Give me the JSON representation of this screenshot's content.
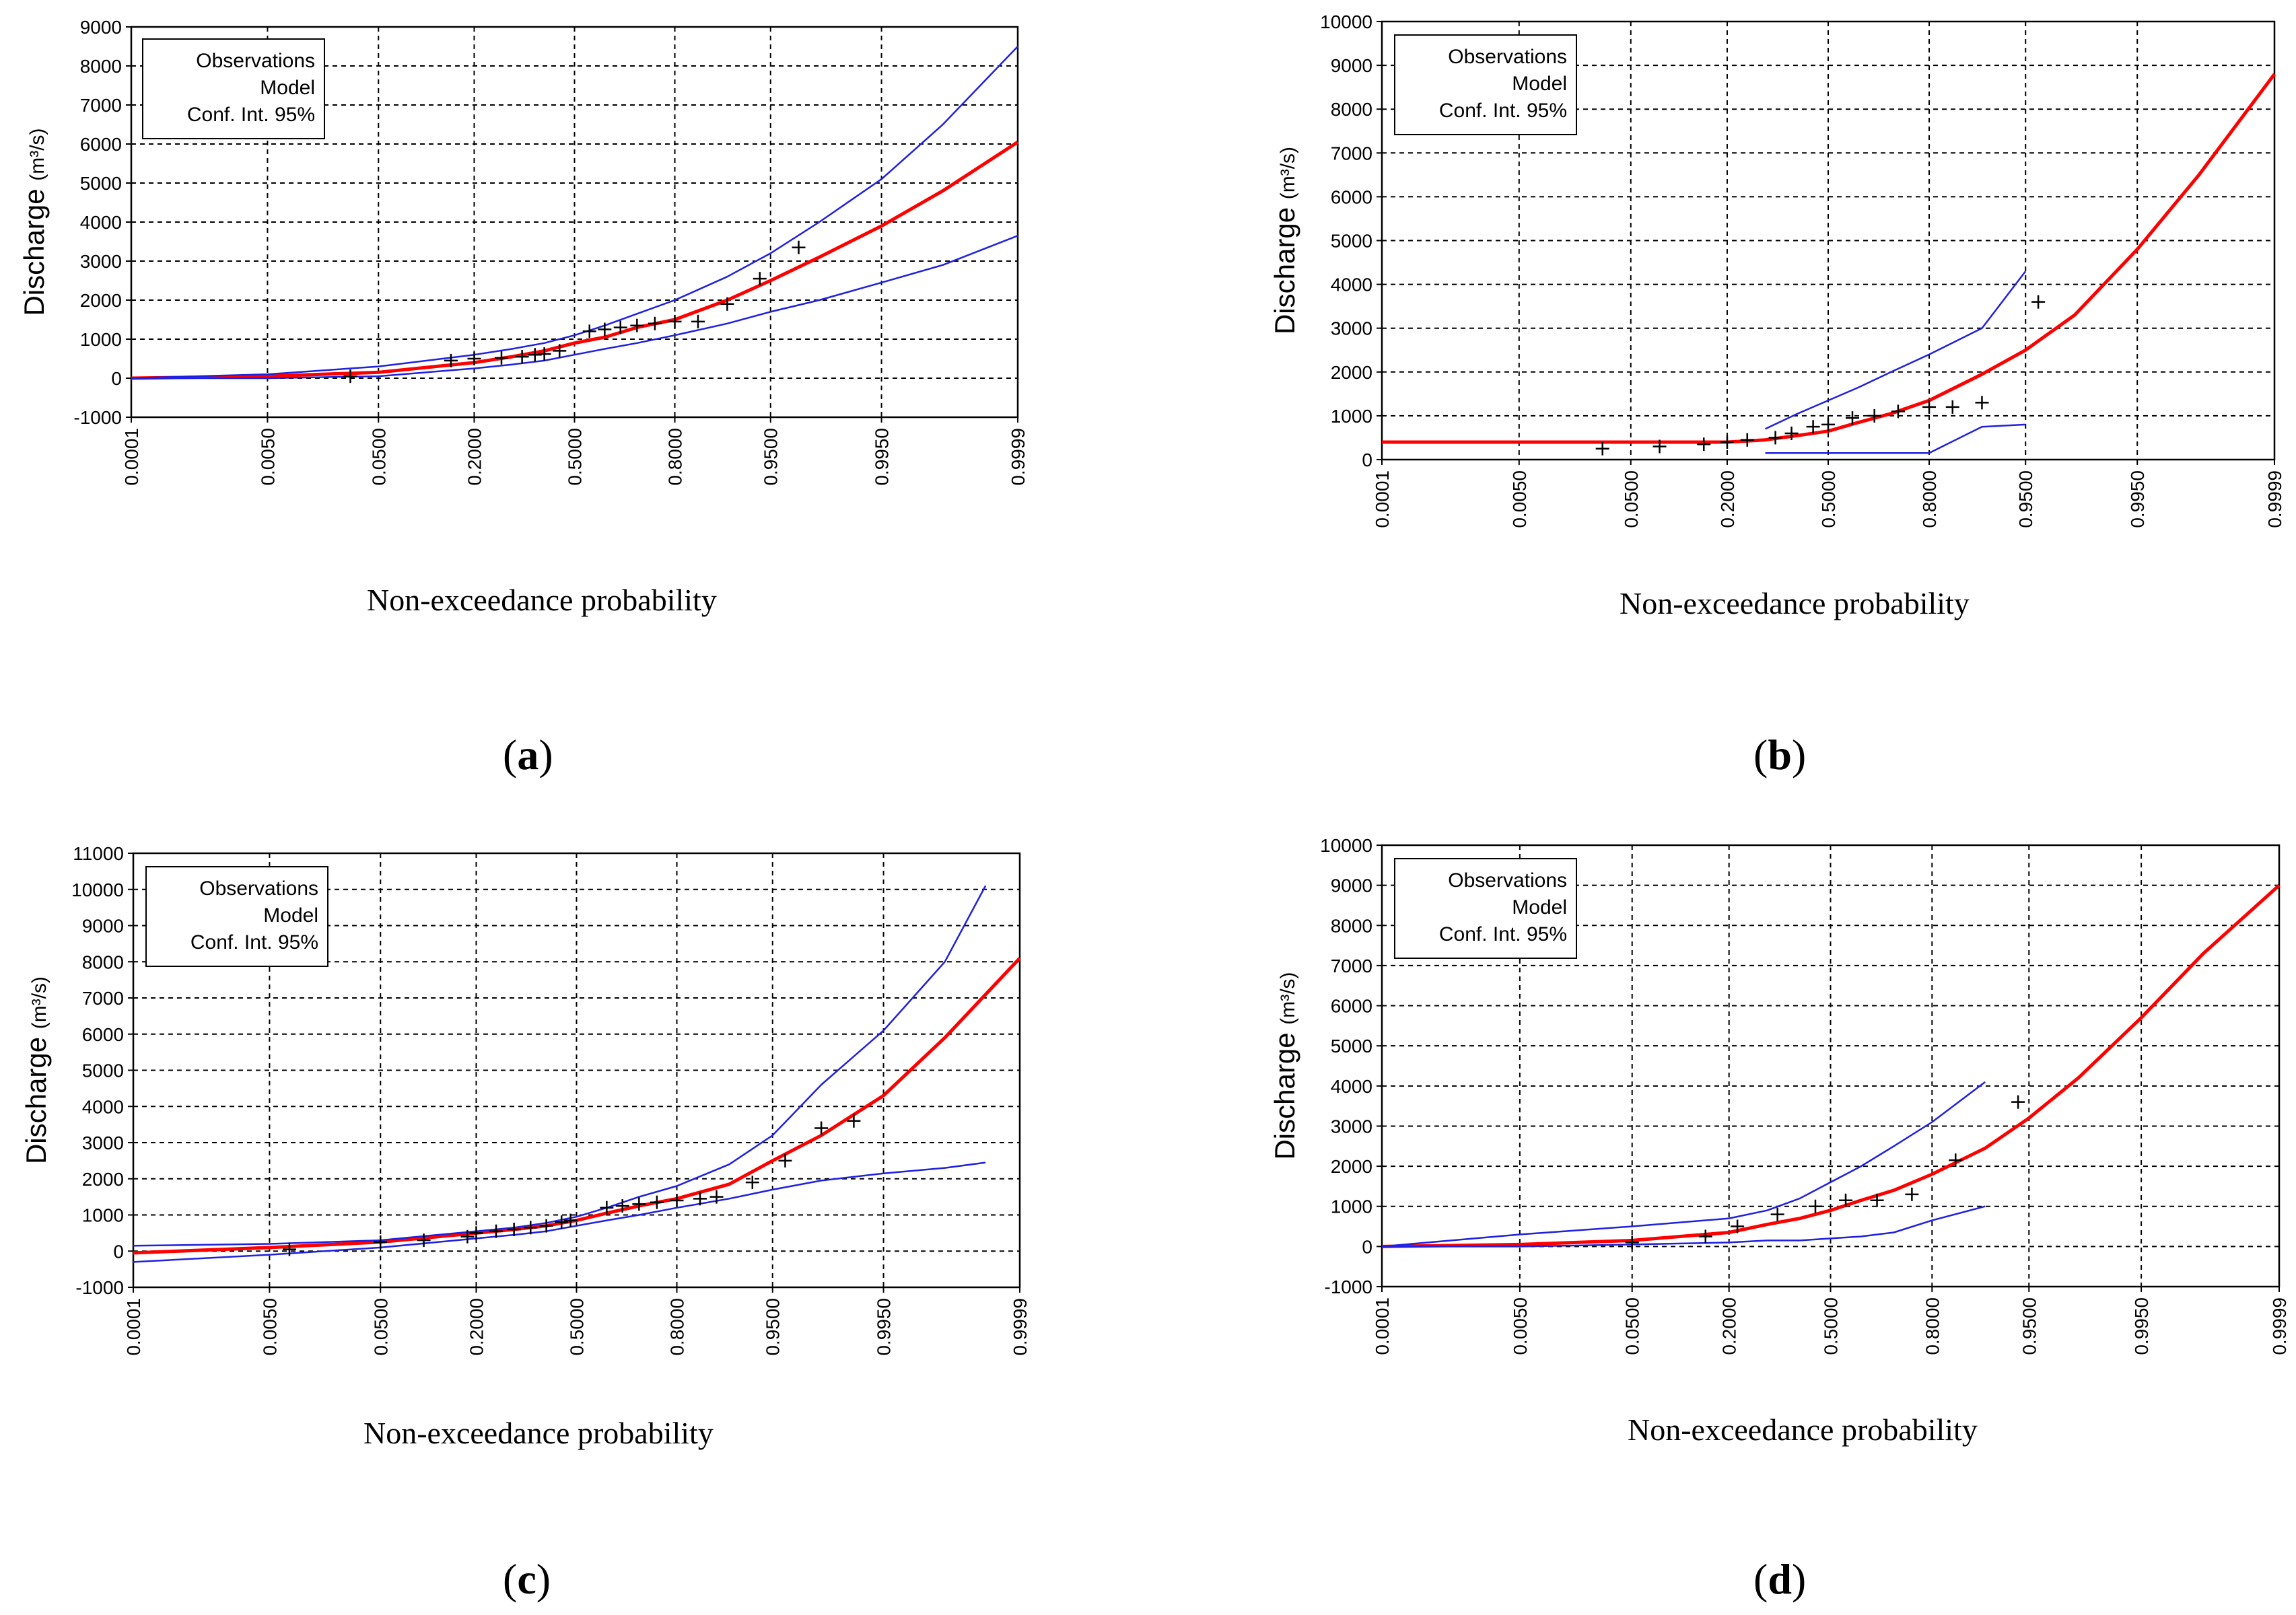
{
  "figure": {
    "x_axis_label": "Non-exceedance probability",
    "y_axis_label": "Discharge",
    "y_axis_unit": "(m³/s)",
    "legend": [
      "Observations",
      "Model",
      "Conf. Int. 95%"
    ],
    "colors": {
      "model": "#ff0000",
      "confidence": "#2020e0",
      "observations": "#000000",
      "grid": "#000000"
    }
  },
  "chart_data": [
    {
      "panel": "a",
      "caption_open": "(",
      "caption_letter": "a",
      "caption_close": ")",
      "type": "line",
      "title": "",
      "xlabel": "Non-exceedance probability",
      "ylabel": "Discharge (m³/s)",
      "x_ticks": [
        "0.0001",
        "0.0050",
        "0.0500",
        "0.2000",
        "0.5000",
        "0.8000",
        "0.9500",
        "0.9950",
        "0.9999"
      ],
      "ylim": [
        -1000,
        9000
      ],
      "y_step": 1000,
      "series": [
        {
          "name": "Model",
          "x": [
            0.0001,
            0.005,
            0.05,
            0.2,
            0.3,
            0.4,
            0.5,
            0.6,
            0.7,
            0.8,
            0.9,
            0.95,
            0.98,
            0.995,
            0.999,
            0.9999
          ],
          "values": [
            0,
            50,
            150,
            400,
            550,
            700,
            900,
            1050,
            1300,
            1500,
            2000,
            2500,
            3100,
            3900,
            4800,
            6050
          ]
        },
        {
          "name": "Conf. Int. 95% upper",
          "x": [
            0.0001,
            0.005,
            0.05,
            0.2,
            0.3,
            0.4,
            0.5,
            0.6,
            0.7,
            0.8,
            0.9,
            0.95,
            0.98,
            0.995,
            0.999,
            0.9999
          ],
          "values": [
            0,
            100,
            300,
            600,
            750,
            900,
            1100,
            1350,
            1650,
            2000,
            2600,
            3200,
            4000,
            5100,
            6500,
            8500
          ]
        },
        {
          "name": "Conf. Int. 95% lower",
          "x": [
            0.0001,
            0.005,
            0.05,
            0.2,
            0.3,
            0.4,
            0.5,
            0.6,
            0.7,
            0.8,
            0.9,
            0.95,
            0.98,
            0.995,
            0.999,
            0.9999
          ],
          "values": [
            0,
            0,
            50,
            250,
            350,
            450,
            600,
            750,
            900,
            1100,
            1400,
            1700,
            2000,
            2450,
            2900,
            3650
          ]
        }
      ],
      "observations": {
        "x": [
          0.03,
          0.15,
          0.2,
          0.27,
          0.33,
          0.37,
          0.4,
          0.45,
          0.55,
          0.6,
          0.65,
          0.7,
          0.75,
          0.8,
          0.85,
          0.9,
          0.94,
          0.97
        ],
        "values": [
          50,
          450,
          500,
          520,
          550,
          600,
          620,
          700,
          1200,
          1250,
          1300,
          1350,
          1400,
          1450,
          1450,
          1900,
          2550,
          3350
        ]
      }
    },
    {
      "panel": "b",
      "caption_open": "(",
      "caption_letter": "b",
      "caption_close": ")",
      "type": "line",
      "title": "",
      "xlabel": "Non-exceedance probability",
      "ylabel": "Discharge (m³/s)",
      "x_ticks": [
        "0.0001",
        "0.0050",
        "0.0500",
        "0.2000",
        "0.5000",
        "0.8000",
        "0.9500",
        "0.9950",
        "0.9999"
      ],
      "ylim": [
        0,
        10000
      ],
      "y_step": 1000,
      "series": [
        {
          "name": "Model",
          "x": [
            0.0001,
            0.005,
            0.05,
            0.2,
            0.3,
            0.4,
            0.5,
            0.6,
            0.7,
            0.8,
            0.9,
            0.95,
            0.98,
            0.995,
            0.999,
            0.9999
          ],
          "values": [
            400,
            400,
            400,
            400,
            450,
            550,
            650,
            850,
            1050,
            1350,
            1950,
            2500,
            3300,
            4800,
            6500,
            8800
          ]
        },
        {
          "name": "Conf. Int. 95% upper",
          "x": [
            0.3,
            0.4,
            0.5,
            0.6,
            0.7,
            0.8,
            0.9,
            0.95
          ],
          "values": [
            700,
            1050,
            1350,
            1650,
            2000,
            2400,
            3000,
            4300
          ]
        },
        {
          "name": "Conf. Int. 95% lower",
          "x": [
            0.3,
            0.8,
            0.9,
            0.95
          ],
          "values": [
            150,
            150,
            750,
            800
          ]
        }
      ],
      "observations": {
        "x": [
          0.03,
          0.08,
          0.15,
          0.2,
          0.25,
          0.33,
          0.38,
          0.45,
          0.5,
          0.58,
          0.65,
          0.72,
          0.8,
          0.85,
          0.9,
          0.96
        ],
        "values": [
          250,
          300,
          350,
          400,
          450,
          500,
          600,
          750,
          800,
          950,
          1000,
          1100,
          1200,
          1200,
          1300,
          3600
        ]
      }
    },
    {
      "panel": "c",
      "caption_open": "(",
      "caption_letter": "c",
      "caption_close": ")",
      "type": "line",
      "title": "",
      "xlabel": "Non-exceedance probability",
      "ylabel": "Discharge (m³/s)",
      "x_ticks": [
        "0.0001",
        "0.0050",
        "0.0500",
        "0.2000",
        "0.5000",
        "0.8000",
        "0.9500",
        "0.9950",
        "0.9999"
      ],
      "ylim": [
        -1000,
        11000
      ],
      "y_step": 1000,
      "series": [
        {
          "name": "Model",
          "x": [
            0.0001,
            0.005,
            0.05,
            0.2,
            0.3,
            0.4,
            0.5,
            0.6,
            0.7,
            0.8,
            0.9,
            0.95,
            0.98,
            0.995,
            0.999,
            0.9999
          ],
          "values": [
            -50,
            100,
            250,
            500,
            600,
            700,
            850,
            1050,
            1250,
            1450,
            1850,
            2500,
            3200,
            4300,
            5900,
            8100
          ]
        },
        {
          "name": "Conf. Int. 95% upper",
          "x": [
            0.0001,
            0.005,
            0.05,
            0.2,
            0.3,
            0.4,
            0.5,
            0.6,
            0.7,
            0.8,
            0.9,
            0.95,
            0.98,
            0.995,
            0.999,
            0.9997
          ],
          "values": [
            150,
            200,
            300,
            550,
            650,
            780,
            950,
            1200,
            1500,
            1800,
            2400,
            3200,
            4600,
            6100,
            8000,
            10100
          ]
        },
        {
          "name": "Conf. Int. 95% lower",
          "x": [
            0.0001,
            0.005,
            0.05,
            0.2,
            0.3,
            0.4,
            0.5,
            0.6,
            0.7,
            0.8,
            0.9,
            0.95,
            0.98,
            0.995,
            0.999,
            0.9997
          ],
          "values": [
            -300,
            -100,
            100,
            350,
            450,
            550,
            700,
            850,
            1000,
            1200,
            1450,
            1700,
            1950,
            2150,
            2300,
            2450
          ]
        }
      ],
      "observations": {
        "x": [
          0.008,
          0.05,
          0.1,
          0.18,
          0.2,
          0.25,
          0.3,
          0.35,
          0.4,
          0.45,
          0.48,
          0.6,
          0.65,
          0.7,
          0.75,
          0.8,
          0.85,
          0.88,
          0.93,
          0.96,
          0.98,
          0.99
        ],
        "values": [
          50,
          250,
          300,
          400,
          500,
          550,
          600,
          650,
          700,
          800,
          850,
          1200,
          1250,
          1300,
          1350,
          1400,
          1450,
          1500,
          1900,
          2500,
          3400,
          3600
        ]
      }
    },
    {
      "panel": "d",
      "caption_open": "(",
      "caption_letter": "d",
      "caption_close": ")",
      "type": "line",
      "title": "",
      "xlabel": "Non-exceedance probability",
      "ylabel": "Discharge (m³/s)",
      "x_ticks": [
        "0.0001",
        "0.0050",
        "0.0500",
        "0.2000",
        "0.5000",
        "0.8000",
        "0.9500",
        "0.9950",
        "0.9999"
      ],
      "ylim": [
        -1000,
        10000
      ],
      "y_step": 1000,
      "series": [
        {
          "name": "Model",
          "x": [
            0.0001,
            0.005,
            0.05,
            0.2,
            0.3,
            0.4,
            0.5,
            0.6,
            0.7,
            0.8,
            0.9,
            0.95,
            0.98,
            0.995,
            0.999,
            0.9999
          ],
          "values": [
            0,
            50,
            150,
            350,
            550,
            700,
            900,
            1150,
            1400,
            1800,
            2450,
            3200,
            4200,
            5700,
            7300,
            9000
          ]
        },
        {
          "name": "Conf. Int. 95% upper",
          "x": [
            0.0001,
            0.005,
            0.05,
            0.2,
            0.3,
            0.4,
            0.5,
            0.6,
            0.7,
            0.8,
            0.9
          ],
          "values": [
            0,
            300,
            500,
            700,
            900,
            1200,
            1600,
            2000,
            2500,
            3100,
            4100
          ]
        },
        {
          "name": "Conf. Int. 95% lower",
          "x": [
            0.0001,
            0.005,
            0.05,
            0.2,
            0.3,
            0.4,
            0.5,
            0.6,
            0.7,
            0.8,
            0.9
          ],
          "values": [
            0,
            0,
            50,
            100,
            150,
            150,
            200,
            250,
            350,
            650,
            1000
          ]
        }
      ],
      "observations": {
        "x": [
          0.05,
          0.15,
          0.22,
          0.33,
          0.45,
          0.55,
          0.65,
          0.75,
          0.85,
          0.94
        ],
        "values": [
          100,
          250,
          500,
          800,
          1000,
          1150,
          1150,
          1300,
          2150,
          3600
        ]
      }
    }
  ]
}
